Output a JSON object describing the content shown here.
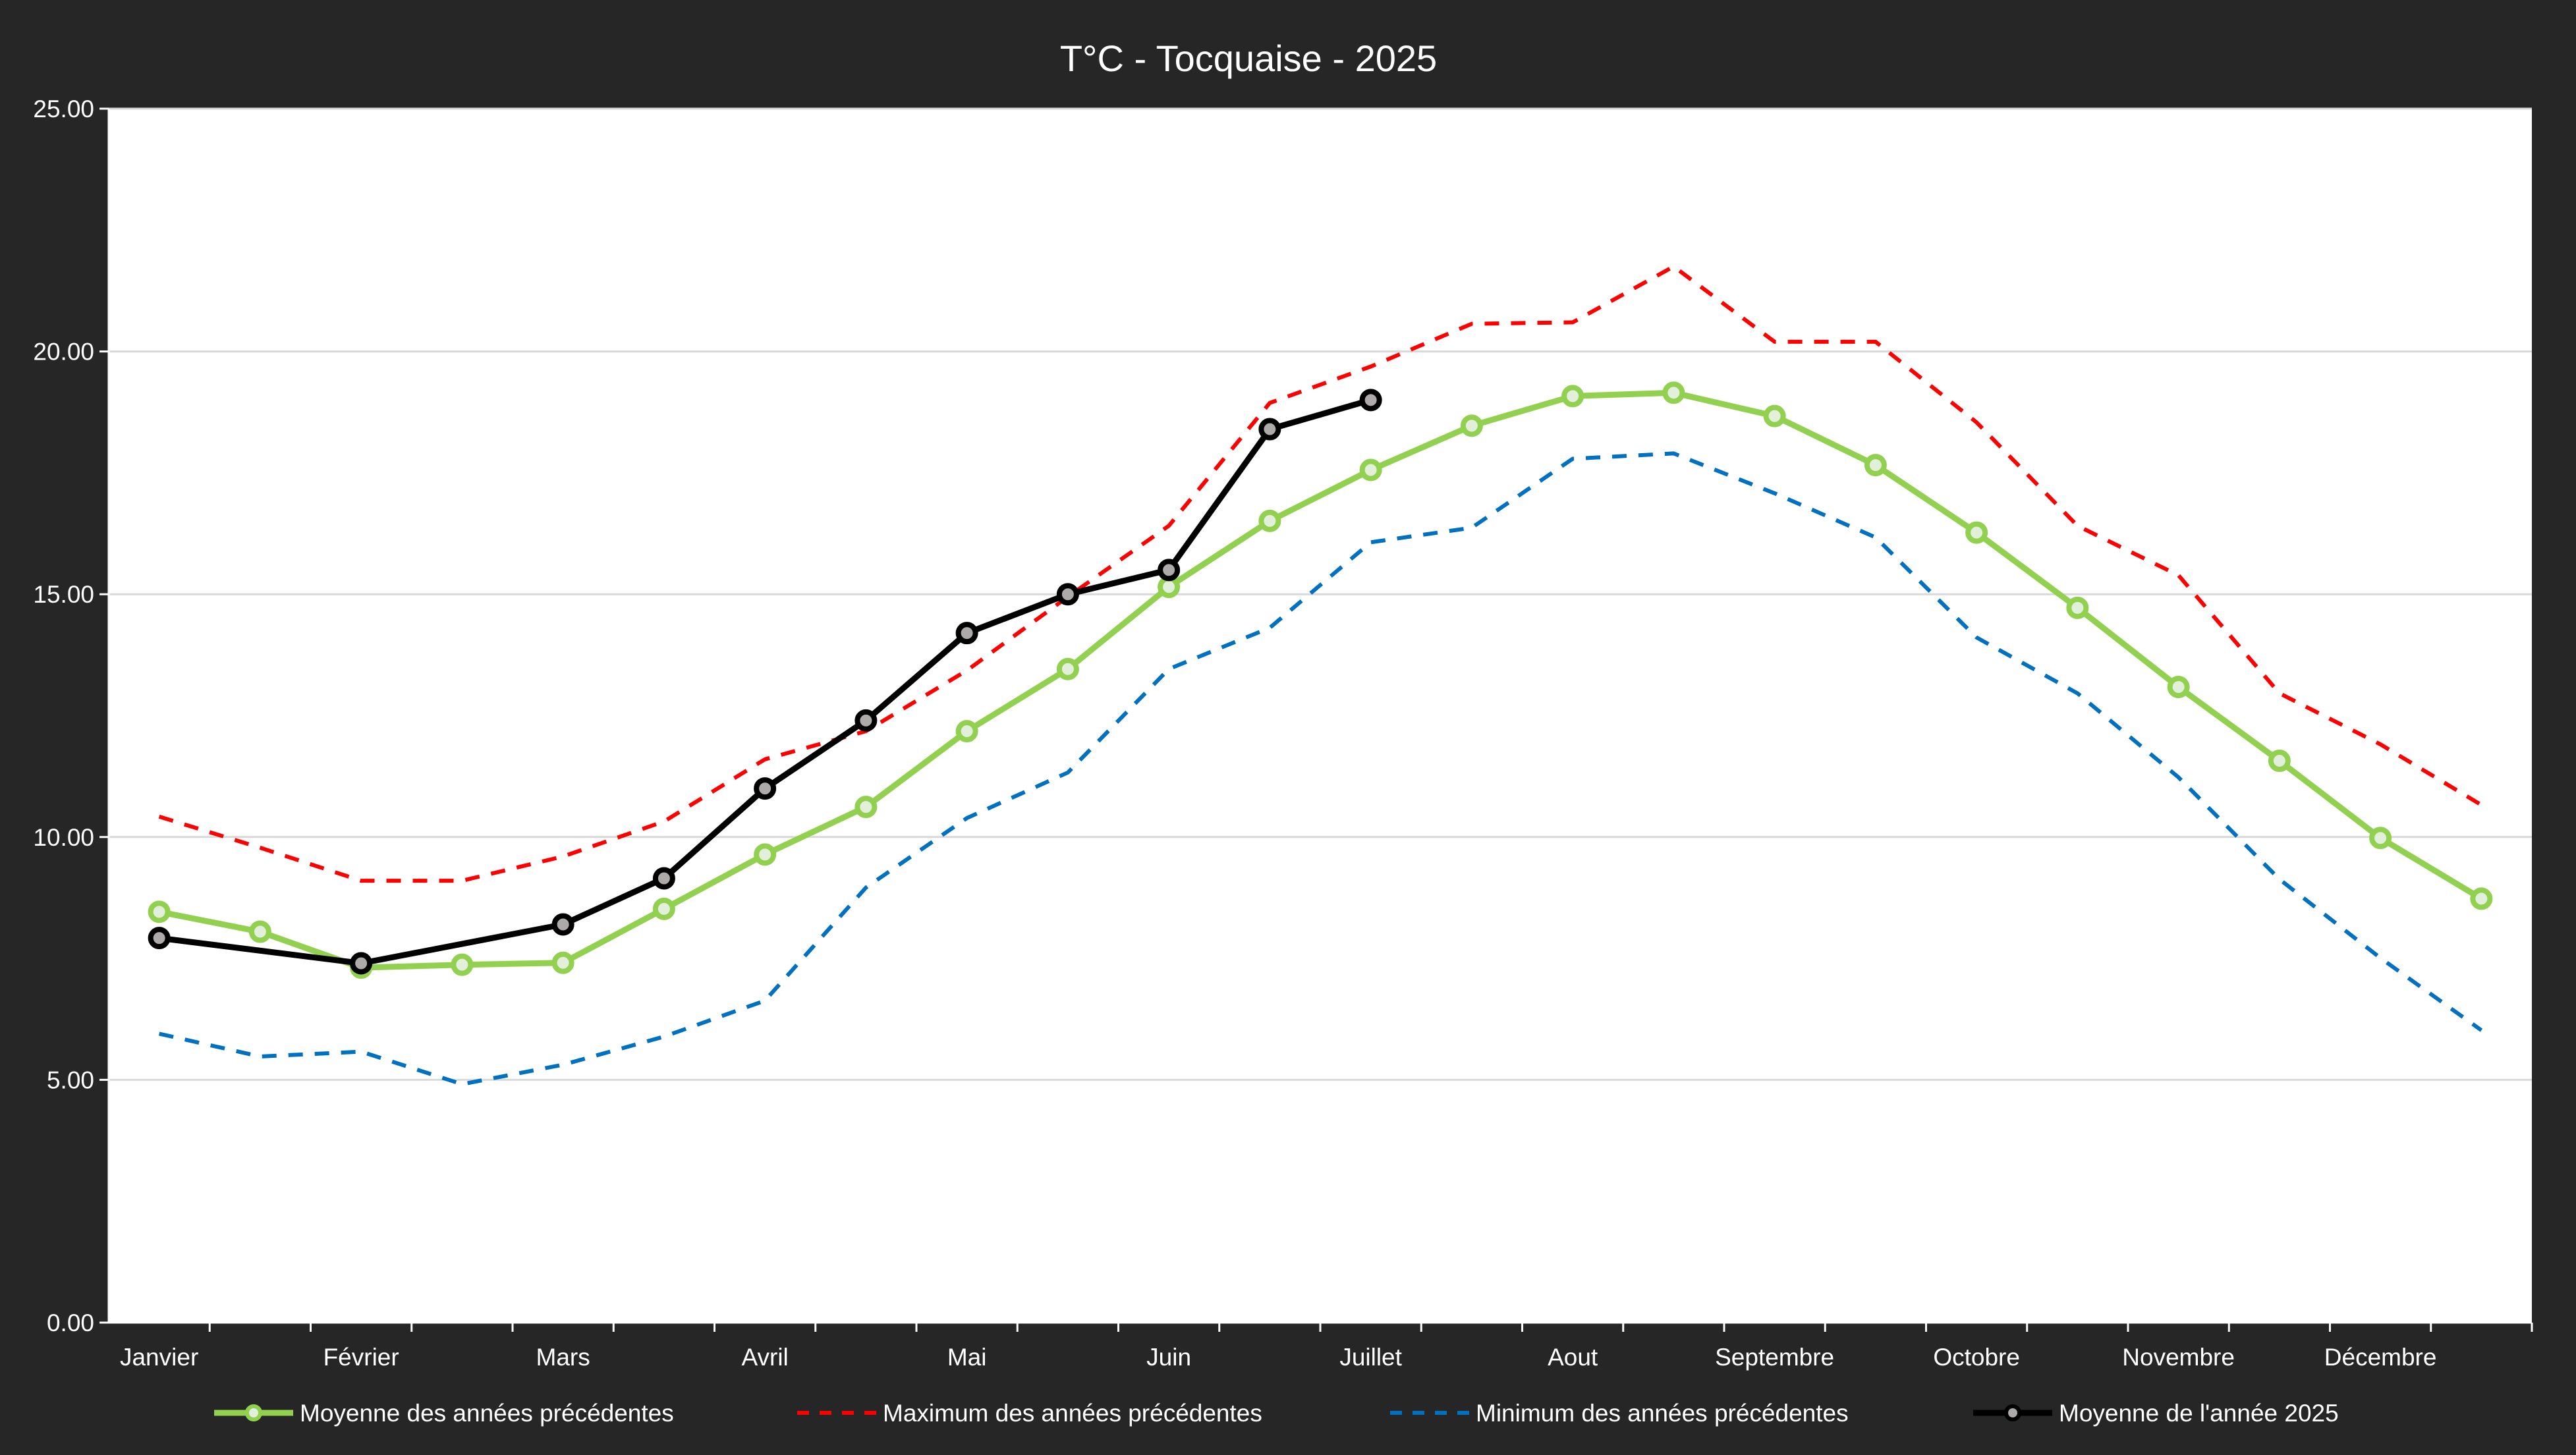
{
  "chart_data": {
    "type": "line",
    "title": "T°C  - Tocquaise - 2025",
    "xlabel": "",
    "ylabel": "",
    "ylim": [
      0,
      25
    ],
    "yticks": [
      "0.00",
      "5.00",
      "10.00",
      "15.00",
      "20.00",
      "25.00"
    ],
    "grid": true,
    "legend_position": "bottom",
    "month_labels": [
      "Janvier",
      "Février",
      "Mars",
      "Avril",
      "Mai",
      "Juin",
      "Juillet",
      "Aout",
      "Septembre",
      "Octobre",
      "Novembre",
      "Décembre"
    ],
    "series": [
      {
        "name": "Moyenne des années précédentes",
        "color": "#92d050",
        "marker_fill": "#e2efda",
        "style": "solid-marker",
        "values": [
          8.46,
          8.05,
          7.31,
          7.37,
          7.41,
          8.52,
          9.64,
          10.62,
          12.18,
          13.46,
          15.15,
          16.51,
          17.56,
          18.47,
          19.08,
          19.15,
          18.67,
          17.66,
          16.27,
          14.72,
          13.09,
          11.57,
          9.98,
          8.73
        ]
      },
      {
        "name": "Maximum des années précédentes",
        "color": "#ff0000",
        "style": "dashed",
        "values": [
          10.42,
          9.78,
          9.1,
          9.1,
          9.6,
          10.32,
          11.6,
          12.18,
          13.43,
          14.95,
          16.41,
          18.94,
          19.69,
          20.57,
          20.6,
          21.75,
          20.2,
          20.2,
          18.54,
          16.41,
          15.39,
          12.96,
          11.91,
          10.66
        ]
      },
      {
        "name": "Minimum des années précédentes",
        "color": "#0070c0",
        "style": "dashed",
        "values": [
          5.95,
          5.48,
          5.58,
          4.91,
          5.31,
          5.89,
          6.63,
          8.96,
          10.39,
          11.33,
          13.46,
          14.31,
          16.07,
          16.37,
          17.79,
          17.9,
          17.08,
          16.17,
          14.11,
          12.96,
          11.23,
          9.13,
          7.51,
          6.02
        ]
      },
      {
        "name": "Moyenne de l'année 2025",
        "color": "#000000",
        "marker_fill": "#aeaaaa",
        "style": "solid-marker",
        "values": [
          7.92,
          null,
          7.4,
          null,
          8.2,
          9.15,
          11.0,
          12.4,
          14.2,
          15.0,
          15.5,
          18.4,
          19.0,
          null,
          null,
          null,
          null,
          null,
          null,
          null,
          null,
          null,
          null,
          null
        ]
      }
    ]
  }
}
